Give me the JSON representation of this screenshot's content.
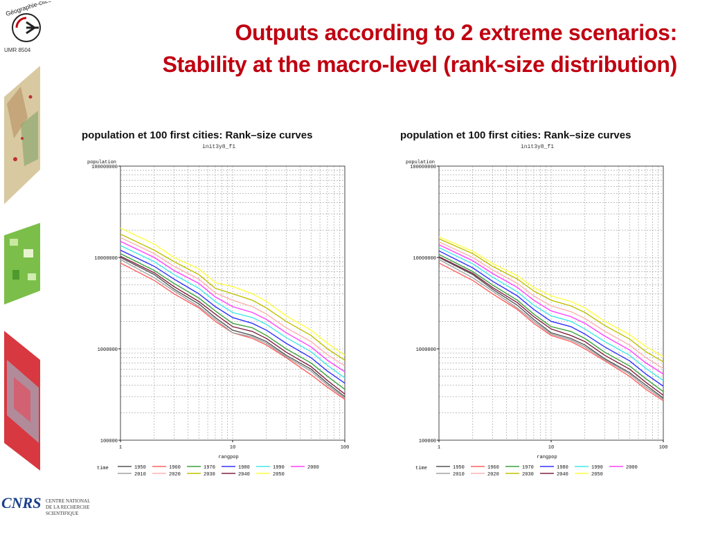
{
  "slide": {
    "title_line1": "Outputs according to 2 extreme scenarios:",
    "title_line2": "Stability at the macro-level (rank-size distribution)"
  },
  "logos": {
    "geographie_cites": "Géographie-cités",
    "umr": "UMR 8504",
    "cnrs_mark": "CNRS",
    "cnrs_text": [
      "CENTRE NATIONAL",
      "DE LA RECHERCHE",
      "SCIENTIFIQUE"
    ]
  },
  "colors": {
    "title": "#c00010",
    "series": [
      "#555555",
      "#ff6060",
      "#3aa03a",
      "#3030ff",
      "#40e8e8",
      "#ff40ff",
      "#a0a0a0",
      "#ffb0b0",
      "#c0c000",
      "#802040",
      "#ffff40",
      "#ff9900"
    ]
  },
  "chart_data": [
    {
      "type": "line",
      "title": "population et 100 first   cities: Rank–size curves",
      "subtitle": "init3y8_f1",
      "xlabel": "rangpop",
      "ylabel": "population",
      "xscale": "log",
      "yscale": "log",
      "xlim": [
        1,
        100
      ],
      "ylim": [
        100000,
        100000000
      ],
      "xticks": [
        "1",
        "10",
        "100"
      ],
      "yticks": [
        "100000",
        "1000000",
        "10000000",
        "100000000"
      ],
      "legend_title": "time",
      "legend_position": "bottom",
      "grid": true,
      "x": [
        1,
        2,
        3,
        5,
        7,
        10,
        15,
        20,
        30,
        50,
        70,
        100
      ],
      "series": [
        {
          "name": "1950",
          "values": [
            10000000,
            6500000,
            4500000,
            3100000,
            2200000,
            1600000,
            1400000,
            1200000,
            850000,
            600000,
            420000,
            300000
          ]
        },
        {
          "name": "1960",
          "values": [
            8700000,
            5600000,
            4000000,
            2800000,
            2000000,
            1500000,
            1300000,
            1100000,
            800000,
            520000,
            380000,
            280000
          ]
        },
        {
          "name": "1970",
          "values": [
            11000000,
            7200000,
            5200000,
            3600000,
            2600000,
            1900000,
            1700000,
            1400000,
            1000000,
            700000,
            500000,
            360000
          ]
        },
        {
          "name": "1980",
          "values": [
            12000000,
            8000000,
            5800000,
            4000000,
            2900000,
            2200000,
            1900000,
            1600000,
            1150000,
            800000,
            570000,
            420000
          ]
        },
        {
          "name": "1990",
          "values": [
            13500000,
            9000000,
            6500000,
            4600000,
            3300000,
            2500000,
            2200000,
            1850000,
            1330000,
            930000,
            660000,
            480000
          ]
        },
        {
          "name": "2000",
          "values": [
            15000000,
            10000000,
            7200000,
            5200000,
            3700000,
            2900000,
            2500000,
            2100000,
            1500000,
            1050000,
            750000,
            560000
          ]
        },
        {
          "name": "2010",
          "values": [
            9500000,
            6000000,
            4300000,
            2900000,
            2100000,
            1500000,
            1350000,
            1150000,
            820000,
            570000,
            400000,
            290000
          ]
        },
        {
          "name": "2020",
          "values": [
            16500000,
            11000000,
            8000000,
            5800000,
            4100000,
            3400000,
            2900000,
            2400000,
            1700000,
            1200000,
            860000,
            650000
          ]
        },
        {
          "name": "2030",
          "values": [
            18000000,
            12000000,
            9000000,
            6500000,
            4600000,
            4000000,
            3400000,
            2800000,
            2000000,
            1400000,
            1000000,
            750000
          ]
        },
        {
          "name": "2040",
          "values": [
            10300000,
            6800000,
            4800000,
            3300000,
            2400000,
            1750000,
            1550000,
            1300000,
            920000,
            640000,
            450000,
            320000
          ]
        },
        {
          "name": "2050",
          "values": [
            21000000,
            14000000,
            10000000,
            7500000,
            5300000,
            4800000,
            4000000,
            3300000,
            2300000,
            1600000,
            1150000,
            850000
          ]
        }
      ]
    },
    {
      "type": "line",
      "title": "population et 100 first   cities: Rank–size curves",
      "subtitle": "init3y8_f1",
      "xlabel": "rangpop",
      "ylabel": "population",
      "xscale": "log",
      "yscale": "log",
      "xlim": [
        1,
        100
      ],
      "ylim": [
        100000,
        100000000
      ],
      "xticks": [
        "1",
        "10",
        "100"
      ],
      "yticks": [
        "100000",
        "1000000",
        "10000000",
        "100000000"
      ],
      "legend_title": "time",
      "legend_position": "bottom",
      "grid": true,
      "x": [
        1,
        2,
        3,
        5,
        7,
        10,
        15,
        20,
        30,
        50,
        70,
        100
      ],
      "series": [
        {
          "name": "1950",
          "values": [
            10000000,
            6500000,
            4500000,
            3000000,
            2100000,
            1500000,
            1300000,
            1100000,
            780000,
            550000,
            400000,
            290000
          ]
        },
        {
          "name": "1960",
          "values": [
            8700000,
            5600000,
            4000000,
            2700000,
            1900000,
            1400000,
            1200000,
            1000000,
            740000,
            500000,
            360000,
            270000
          ]
        },
        {
          "name": "1970",
          "values": [
            10800000,
            7000000,
            5000000,
            3400000,
            2400000,
            1750000,
            1550000,
            1300000,
            920000,
            650000,
            470000,
            340000
          ]
        },
        {
          "name": "1980",
          "values": [
            11800000,
            7700000,
            5500000,
            3800000,
            2700000,
            2000000,
            1750000,
            1450000,
            1050000,
            740000,
            530000,
            390000
          ]
        },
        {
          "name": "1990",
          "values": [
            12800000,
            8500000,
            6100000,
            4200000,
            3000000,
            2300000,
            2000000,
            1650000,
            1200000,
            850000,
            610000,
            450000
          ]
        },
        {
          "name": "2000",
          "values": [
            13800000,
            9200000,
            6700000,
            4700000,
            3400000,
            2600000,
            2250000,
            1900000,
            1380000,
            970000,
            700000,
            530000
          ]
        },
        {
          "name": "2010",
          "values": [
            9500000,
            6000000,
            4300000,
            2800000,
            2000000,
            1450000,
            1250000,
            1050000,
            760000,
            530000,
            380000,
            280000
          ]
        },
        {
          "name": "2020",
          "values": [
            14800000,
            10000000,
            7300000,
            5200000,
            3800000,
            2950000,
            2550000,
            2150000,
            1560000,
            1100000,
            800000,
            610000
          ]
        },
        {
          "name": "2030",
          "values": [
            16000000,
            11000000,
            8000000,
            5800000,
            4300000,
            3400000,
            2950000,
            2500000,
            1800000,
            1280000,
            930000,
            720000
          ]
        },
        {
          "name": "2040",
          "values": [
            10200000,
            6700000,
            4700000,
            3200000,
            2250000,
            1650000,
            1400000,
            1200000,
            850000,
            600000,
            430000,
            310000
          ]
        },
        {
          "name": "2050",
          "values": [
            16800000,
            11700000,
            8600000,
            6300000,
            4700000,
            3800000,
            3300000,
            2800000,
            2000000,
            1430000,
            1060000,
            820000
          ]
        }
      ]
    }
  ]
}
